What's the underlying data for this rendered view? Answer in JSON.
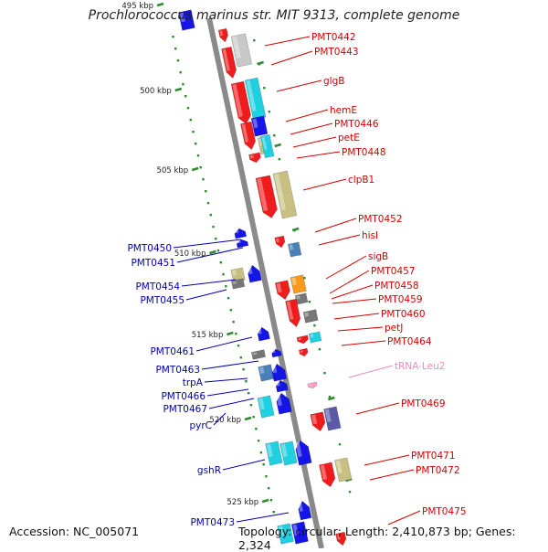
{
  "header": {
    "title": "Prochlorococcus marinus str. MIT 9313, complete genome"
  },
  "footer": {
    "accession": "Accession: NC_005071",
    "summary": "Topology: circular; Length: 2,410,873 bp; Genes: 2,324"
  },
  "colors": {
    "backbone": "#8c8c8c",
    "tick": "#2e8b2e",
    "right_labels": "#d40000",
    "left_labels": "#0000b0",
    "rna_label": "#ee88bb",
    "gene_red": "#ee1c1c",
    "gene_blue": "#1515e6",
    "gene_cyan": "#1fd0e0",
    "gene_olive": "#c8c082",
    "gene_grey": "#777777",
    "gene_lightgrey": "#c8c8c8",
    "gene_steel": "#4a7fb8",
    "gene_orange": "#f59a1a",
    "gene_purple": "#5a5aa8",
    "gene_pink": "#ff9ec8"
  },
  "scale": {
    "ticks": [
      {
        "label": "495 kbp"
      },
      {
        "label": "500 kbp"
      },
      {
        "label": "505 kbp"
      },
      {
        "label": "510 kbp"
      },
      {
        "label": "515 kbp"
      },
      {
        "label": "520 kbp"
      },
      {
        "label": "525 kbp"
      }
    ]
  },
  "right_genes": [
    {
      "label": "PMT0442"
    },
    {
      "label": "PMT0443"
    },
    {
      "label": "glgB"
    },
    {
      "label": "hemE"
    },
    {
      "label": "PMT0446"
    },
    {
      "label": "petE"
    },
    {
      "label": "PMT0448"
    },
    {
      "label": "clpB1"
    },
    {
      "label": "PMT0452"
    },
    {
      "label": "hisI"
    },
    {
      "label": "sigB"
    },
    {
      "label": "PMT0457"
    },
    {
      "label": "PMT0458"
    },
    {
      "label": "PMT0459"
    },
    {
      "label": "PMT0460"
    },
    {
      "label": "petJ"
    },
    {
      "label": "PMT0464"
    },
    {
      "label": "tRNA-Leu2"
    },
    {
      "label": "PMT0469"
    },
    {
      "label": "PMT0471"
    },
    {
      "label": "PMT0472"
    },
    {
      "label": "PMT0475"
    }
  ],
  "left_genes": [
    {
      "label": "PMT0450"
    },
    {
      "label": "PMT0451"
    },
    {
      "label": "PMT0454"
    },
    {
      "label": "PMT0455"
    },
    {
      "label": "PMT0461"
    },
    {
      "label": "PMT0463"
    },
    {
      "label": "trpA"
    },
    {
      "label": "PMT0466"
    },
    {
      "label": "PMT0467"
    },
    {
      "label": "pyrC"
    },
    {
      "label": "gshR"
    },
    {
      "label": "PMT0473"
    }
  ]
}
